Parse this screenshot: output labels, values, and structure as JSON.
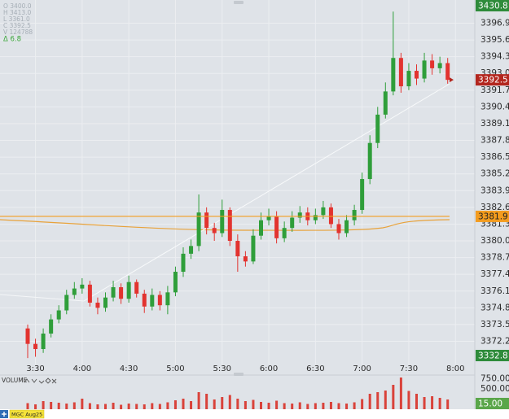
{
  "info": {
    "lines": [
      "O 3400.0",
      "H 3413.0",
      "L 3361.0",
      "C 3392.5",
      "V 124788"
    ],
    "delta": "Δ  6.8"
  },
  "chart_data": [
    {
      "type": "candlestick",
      "categories": [
        null,
        "3:30",
        null,
        null,
        null,
        null,
        null,
        "4:00",
        null,
        null,
        null,
        null,
        null,
        "4:30",
        null,
        null,
        null,
        null,
        null,
        "5:00",
        null,
        null,
        null,
        null,
        null,
        "5:30",
        null,
        null,
        null,
        null,
        null,
        "6:00",
        null,
        null,
        null,
        null,
        null,
        "6:30",
        null,
        null,
        null,
        null,
        null,
        "7:00",
        null,
        null,
        null,
        null,
        null,
        "7:30",
        null,
        null,
        null,
        null,
        null,
        "8:00"
      ],
      "open": [
        3373.2,
        3372.0,
        3371.6,
        3372.8,
        3373.9,
        3374.6,
        3375.8,
        3376.3,
        3376.6,
        3375.2,
        3374.8,
        3375.6,
        3376.4,
        3375.5,
        3376.8,
        3375.9,
        3374.9,
        3375.8,
        3375.0,
        3376.0,
        3377.6,
        3379.0,
        3379.6,
        3382.2,
        3381.0,
        3380.6,
        3382.4,
        3380.0,
        3378.8,
        3378.4,
        3380.4,
        3381.6,
        3381.9,
        3380.2,
        3381.0,
        3381.8,
        3382.2,
        3381.6,
        3382.0,
        3382.6,
        3381.3,
        3380.6,
        3381.6,
        3382.4,
        3384.8,
        3387.6,
        3389.8,
        3391.6,
        3394.2,
        3392.0,
        3393.2,
        3392.6,
        3394.0,
        3393.4,
        3393.8,
        null
      ],
      "high": [
        3373.5,
        3372.4,
        3373.2,
        3374.3,
        3375.0,
        3376.2,
        3376.8,
        3377.1,
        3376.9,
        3375.6,
        3376.0,
        3376.9,
        3376.7,
        3377.3,
        3377.0,
        3376.2,
        3376.3,
        3376.1,
        3376.5,
        3378.0,
        3379.5,
        3380.1,
        3383.6,
        3382.6,
        3381.4,
        3383.2,
        3382.6,
        3380.5,
        3379.2,
        3380.9,
        3382.2,
        3382.5,
        3382.3,
        3381.5,
        3382.3,
        3382.7,
        3382.6,
        3382.5,
        3383.1,
        3382.9,
        3381.7,
        3382.0,
        3382.8,
        3385.3,
        3388.2,
        3390.4,
        3392.3,
        3397.8,
        3394.6,
        3393.8,
        3393.7,
        3394.6,
        3394.5,
        3394.3,
        3394.2,
        null
      ],
      "low": [
        3370.9,
        3371.0,
        3371.3,
        3372.5,
        3373.6,
        3374.3,
        3375.5,
        3375.9,
        3374.9,
        3374.3,
        3374.5,
        3375.3,
        3375.1,
        3375.2,
        3375.6,
        3374.4,
        3374.6,
        3374.6,
        3374.3,
        3375.7,
        3377.2,
        3378.6,
        3379.2,
        3380.5,
        3380.0,
        3380.3,
        3379.6,
        3377.6,
        3378.0,
        3378.2,
        3380.1,
        3381.2,
        3379.8,
        3379.9,
        3380.7,
        3381.4,
        3381.2,
        3381.3,
        3381.7,
        3381.0,
        3380.1,
        3380.3,
        3381.2,
        3382.1,
        3384.4,
        3387.2,
        3389.5,
        3391.3,
        3391.5,
        3391.7,
        3392.1,
        3392.3,
        3392.9,
        3393.0,
        3392.2,
        null
      ],
      "close": [
        3372.0,
        3371.6,
        3372.8,
        3373.9,
        3374.6,
        3375.8,
        3376.3,
        3376.6,
        3375.2,
        3374.8,
        3375.6,
        3376.4,
        3375.5,
        3376.8,
        3375.9,
        3374.9,
        3375.8,
        3375.0,
        3376.0,
        3377.6,
        3379.0,
        3379.6,
        3382.2,
        3381.0,
        3380.6,
        3382.4,
        3380.0,
        3378.8,
        3378.4,
        3380.4,
        3381.6,
        3381.9,
        3380.2,
        3381.0,
        3381.8,
        3382.2,
        3381.6,
        3382.0,
        3382.6,
        3381.3,
        3380.6,
        3381.6,
        3382.4,
        3384.8,
        3387.6,
        3389.8,
        3391.6,
        3394.2,
        3392.0,
        3393.2,
        3392.6,
        3394.0,
        3393.4,
        3393.8,
        3392.5,
        null
      ],
      "up_color": "#2f9e3a",
      "down_color": "#e2332f",
      "ylim": [
        3370.4,
        3398.7
      ],
      "yticks": [
        3396.9,
        3395.6,
        3394.3,
        {
          "value": 3393,
          "label": "3393.0"
        },
        3391.7,
        3390.4,
        3389.1,
        3387.8,
        3386.5,
        3385.2,
        3383.9,
        3382.6,
        3381.3,
        {
          "value": 3380,
          "label": "3380.0"
        },
        3378.7,
        3377.4,
        3376.1,
        3374.8,
        3373.5,
        3372.2
      ],
      "grid": true,
      "badges": [
        {
          "value": 3430.8,
          "color": "#2e8b3a",
          "text_color": "#ffffff"
        },
        {
          "value": 3392.5,
          "color": "#b3261e",
          "text_color": "#ffffff"
        },
        {
          "value": 3381.9,
          "color": "#f39c1f",
          "text_color": "#222222",
          "line": true
        },
        {
          "value": 3332.8,
          "color": "#2e8b3a",
          "text_color": "#ffffff"
        }
      ]
    },
    {
      "type": "bar",
      "title": "VOLUME",
      "values": [
        150,
        120,
        200,
        180,
        160,
        140,
        170,
        260,
        150,
        120,
        130,
        160,
        110,
        140,
        130,
        120,
        150,
        130,
        170,
        220,
        260,
        200,
        420,
        380,
        240,
        300,
        350,
        260,
        200,
        230,
        180,
        160,
        210,
        150,
        140,
        170,
        130,
        150,
        160,
        180,
        150,
        140,
        170,
        250,
        380,
        420,
        460,
        600,
        780,
        450,
        380,
        300,
        320,
        280,
        240,
        null
      ],
      "color": "#d9423a",
      "ylim": [
        0,
        800
      ],
      "yticks": [
        {
          "value": 750,
          "label": "750.00"
        },
        {
          "value": 500,
          "label": "500.00"
        }
      ],
      "badges": [
        {
          "value": 15,
          "label": "15.00",
          "color": "#5aa64a",
          "text_color": "#ffffff"
        }
      ]
    }
  ],
  "tab": "MGC Aug25"
}
